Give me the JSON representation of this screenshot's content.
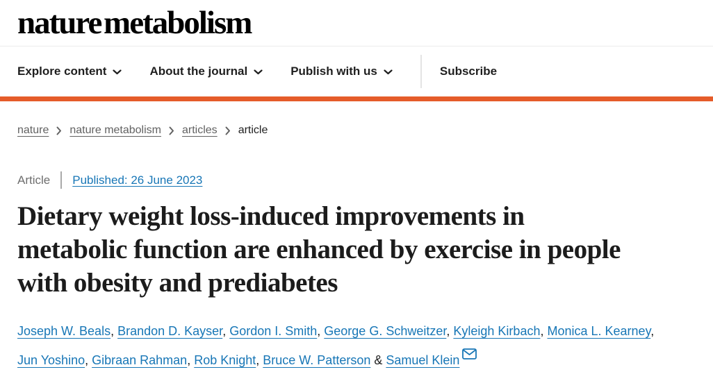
{
  "header": {
    "logo_text": "nature metabolism",
    "nav_items": [
      {
        "label": "Explore content",
        "icon": "chevron-down-icon"
      },
      {
        "label": "About the journal",
        "icon": "chevron-down-icon"
      },
      {
        "label": "Publish with us",
        "icon": "chevron-down-icon"
      }
    ],
    "subscribe_label": "Subscribe"
  },
  "breadcrumb": {
    "items": [
      "nature",
      "nature metabolism",
      "articles",
      "article"
    ]
  },
  "meta": {
    "article_type": "Article",
    "published": "Published: 26 June 2023"
  },
  "title": "Dietary weight loss-induced improvements in\nmetabolic function are enhanced by exercise in people\nwith obesity and prediabetes",
  "authors": {
    "names": [
      "Joseph W. Beals",
      "Brandon D. Kayser",
      "Gordon I. Smith",
      "George G. Schweitzer",
      "Kyleigh Kirbach",
      "Monica L. Kearney",
      "Jun Yoshino",
      "Gibraan Rahman",
      "Rob Knight",
      "Bruce W. Patterson",
      "Samuel Klein"
    ],
    "separator": ", ",
    "conjunction": " & ",
    "corresponding_author_icon": "envelope-icon"
  },
  "colors": {
    "accent_orange": "#e55c2a",
    "link_blue": "#1776b6",
    "text_dark": "#222222",
    "text_gray": "#666666"
  }
}
